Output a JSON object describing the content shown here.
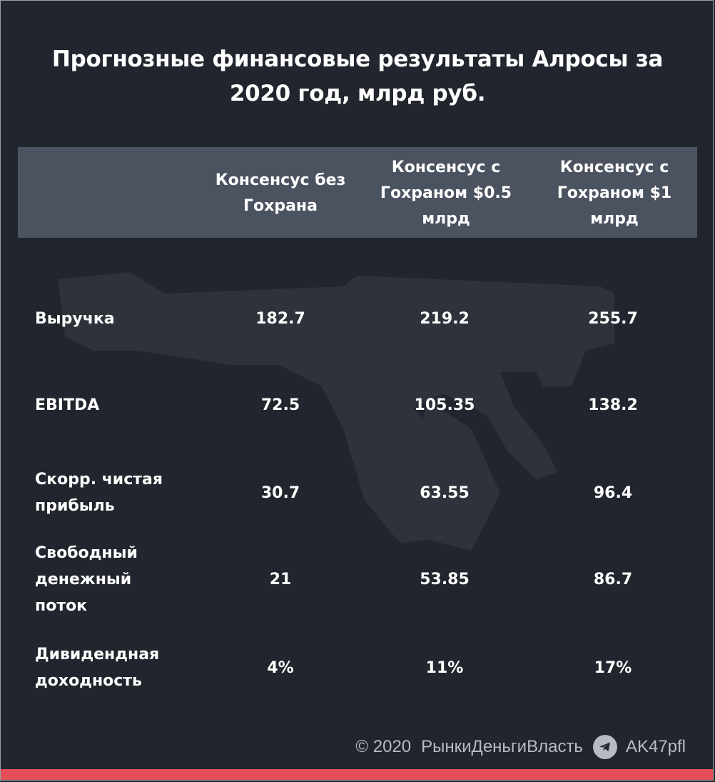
{
  "title": "Прогнозные финансовые результаты Алросы за 2020 год, млрд руб.",
  "chart_data": {
    "type": "table",
    "title": "Прогнозные финансовые результаты Алросы за 2020 год, млрд руб.",
    "columns": [
      "Консенсус без Гохрана",
      "Консенсус с Гохраном $0.5 млрд",
      "Консенсус с Гохраном $1 млрд"
    ],
    "rows": [
      {
        "label": "Выручка",
        "values": [
          "182.7",
          "219.2",
          "255.7"
        ]
      },
      {
        "label": "EBITDA",
        "values": [
          "72.5",
          "105.35",
          "138.2"
        ]
      },
      {
        "label": "Скорр. чистая прибыль",
        "values": [
          "30.7",
          "63.55",
          "96.4"
        ]
      },
      {
        "label": "Свободный денежный поток",
        "values": [
          "21",
          "53.85",
          "86.7"
        ]
      },
      {
        "label": "Дивидендная доходность",
        "values": [
          "4%",
          "11%",
          "17%"
        ]
      }
    ]
  },
  "footer": {
    "copyright": "© 2020",
    "brand": "РынкиДеньгиВласть",
    "channel_icon": "telegram-icon",
    "channel": "AK47pfl"
  },
  "colors": {
    "background": "#21252d",
    "header_band": "#4b5260",
    "accent_bar": "#e3505a",
    "footer_text": "#b7bcc3"
  }
}
